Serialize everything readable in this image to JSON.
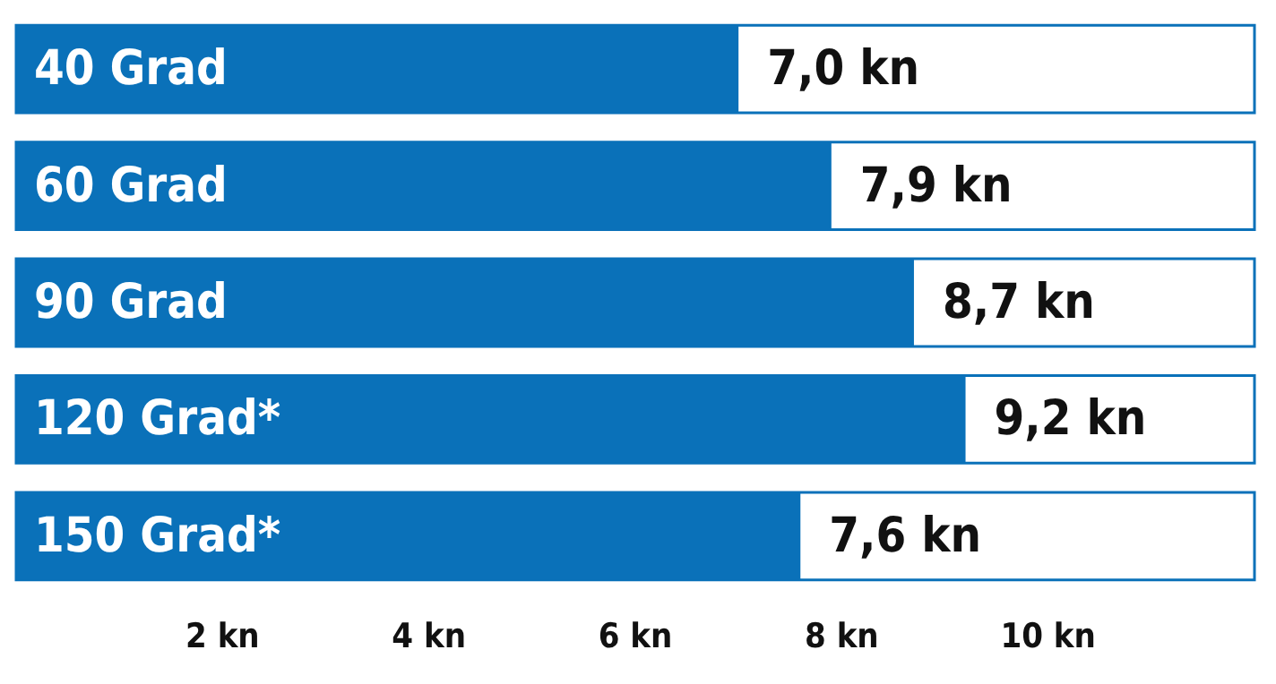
{
  "chart_data": {
    "type": "bar",
    "orientation": "horizontal",
    "categories": [
      "40 Grad",
      "60 Grad",
      "90 Grad",
      "120 Grad*",
      "150 Grad*"
    ],
    "values": [
      7.0,
      7.9,
      8.7,
      9.2,
      7.6
    ],
    "value_labels": [
      "7,0 kn",
      "7,9 kn",
      "8,7 kn",
      "9,2 kn",
      "7,6 kn"
    ],
    "color": "#0a71b9",
    "xlim": [
      0,
      12
    ],
    "xticks": [
      {
        "value": 2,
        "label": "2 kn"
      },
      {
        "value": 4,
        "label": "4 kn"
      },
      {
        "value": 6,
        "label": "6 kn"
      },
      {
        "value": 8,
        "label": "8 kn"
      },
      {
        "value": 10,
        "label": "10 kn"
      }
    ],
    "grid": false
  }
}
